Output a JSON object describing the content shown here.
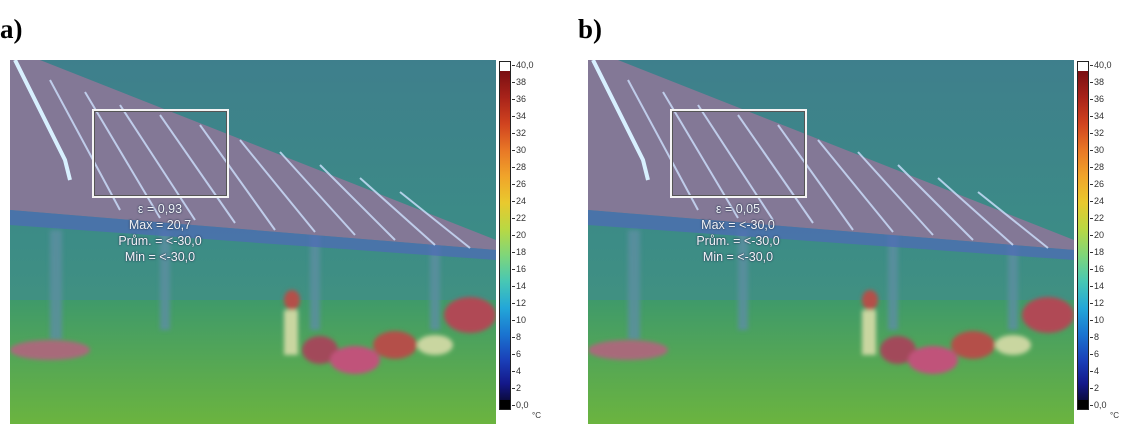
{
  "panels": [
    {
      "label": "a)",
      "readout": [
        "ε = 0,93",
        "Max = 20,7",
        "Prům. = <-30,0",
        "Min = <-30,0"
      ]
    },
    {
      "label": "b)",
      "readout": [
        "ε = 0,05",
        "Max = <-30,0",
        "Prům. = <-30,0",
        "Min = <-30,0"
      ]
    }
  ],
  "scale": {
    "ticks": [
      "40,0",
      "38",
      "36",
      "34",
      "32",
      "30",
      "28",
      "26",
      "24",
      "22",
      "20",
      "18",
      "16",
      "14",
      "12",
      "10",
      "8",
      "6",
      "4",
      "2",
      "0,0"
    ],
    "unit": "°C"
  },
  "colors": {
    "background_trees": "#3f8a86",
    "roof": "#837896",
    "ground": "#55a94a",
    "roof_lines": "#cfe2ff",
    "people_warm": "#b4504a"
  }
}
